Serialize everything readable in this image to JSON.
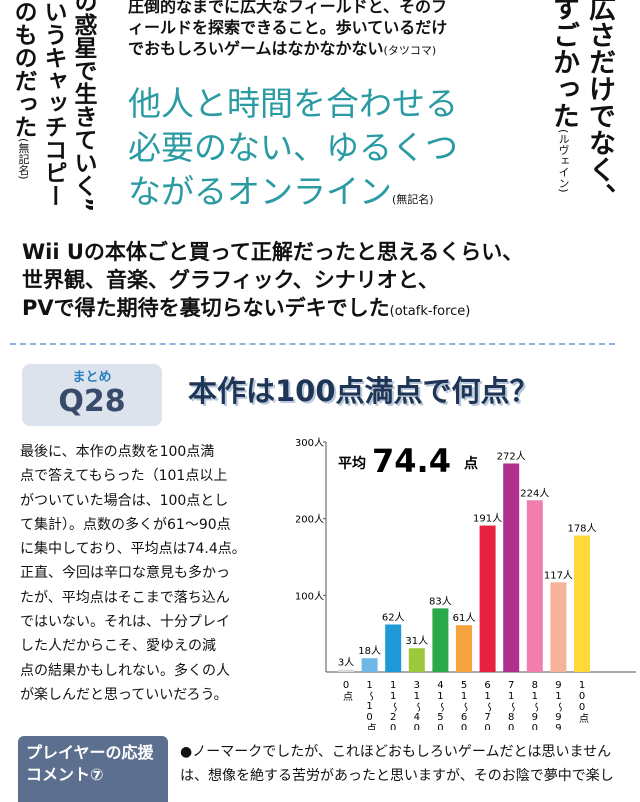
{
  "left_column": {
    "lines": [
      "の惑星で生きていく”",
      "いうキャッチコピー",
      "のものだった"
    ],
    "credit": "(無記名)"
  },
  "center_comment": {
    "lines": [
      "圧倒的なまでに広大なフィールドと、そのフ",
      "ィールドを探索できること。歩いているだけ",
      "でおもしろいゲームはなかなかない"
    ],
    "credit": "(タツコマ)"
  },
  "headline_comment": {
    "lines": [
      "他人と時間を合わせる",
      "必要のない、ゆるくつ",
      "ながるオンライン"
    ],
    "credit": "(無記名)"
  },
  "right_column": {
    "lines": [
      "広さだけでなく、",
      "すごかった"
    ],
    "credit": "(ルヴェイン)"
  },
  "quote_comment": {
    "lines": [
      "Wii Uの本体ごと買って正解だったと思えるくらい、",
      "世界観、音楽、グラフィック、シナリオと、",
      "PVで得た期待を裏切らないデキでした"
    ],
    "credit": "(otafk-force)"
  },
  "section": {
    "tag": "まとめ",
    "number": "Q28",
    "title": "本作は100点満点で何点？"
  },
  "body": {
    "lines": [
      "最後に、本作の点数を100点満",
      "点で答えてもらった（101点以上",
      "がついていた場合は、100点とし",
      "て集計）。点数の多くが61〜90点",
      "に集中しており、平均点は74.4点。",
      "正直、今回は辛口な意見も多かっ",
      "たが、平均点はそこまで落ち込ん",
      "ではいない。それは、十分プレイ",
      "した人だからこそ、愛ゆえの減",
      "点の結果かもしれない。多くの人",
      "が楽しんだと思っていいだろう。"
    ]
  },
  "chart_data": {
    "type": "bar",
    "average": {
      "label": "平均",
      "value": "74.4",
      "unit": "点"
    },
    "categories": [
      "0点",
      "1〜10点",
      "11〜20点",
      "31〜40点",
      "41〜50点",
      "51〜60点",
      "61〜70点",
      "71〜80点",
      "81〜90点",
      "91〜99点",
      "100点"
    ],
    "values": [
      3,
      18,
      62,
      31,
      83,
      61,
      191,
      272,
      224,
      117,
      178
    ],
    "value_labels": [
      "3人",
      "18人",
      "62人",
      "31人",
      "83人",
      "61人",
      "191人",
      "272人",
      "224人",
      "117人",
      "178人"
    ],
    "colors": [
      "#d9d9d9",
      "#6fb8e6",
      "#1e9ad6",
      "#9cc83c",
      "#2aa84a",
      "#f5a33d",
      "#e8213f",
      "#b0308f",
      "#f07fb0",
      "#f5b49a",
      "#ffd83a"
    ],
    "ylim": [
      0,
      300
    ],
    "yticks": [
      {
        "value": 100,
        "label": "100人"
      },
      {
        "value": 200,
        "label": "200人"
      },
      {
        "value": 300,
        "label": "300人"
      }
    ]
  },
  "footer": {
    "heading": "プレイヤーの応援コメント⑦",
    "lines": [
      "●ノーマークでしたが、これほどおもしろいゲームだとは思いません",
      "は、想像を絶する苦労があったと思いますが、そのお陰で夢中で楽し"
    ]
  }
}
